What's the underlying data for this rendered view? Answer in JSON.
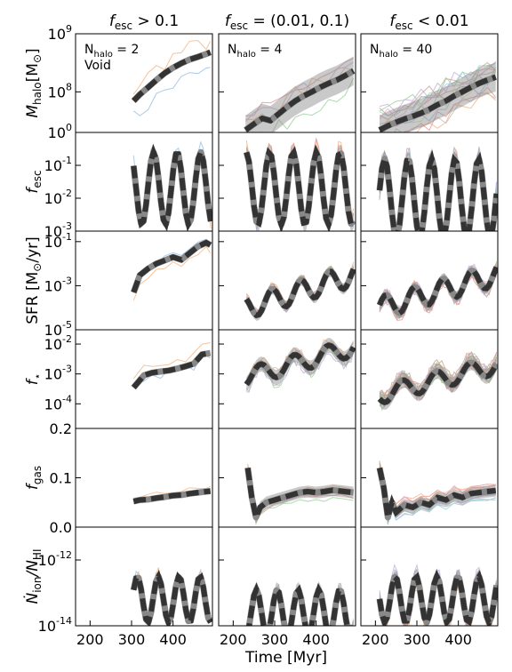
{
  "figure": {
    "column_titles": [
      "f_esc > 0.1",
      "f_esc = (0.01, 0.1)",
      "f_esc < 0.01"
    ],
    "xlabel": "Time [Myr]",
    "xticks": [
      200,
      300,
      400
    ],
    "xlim": [
      165,
      495
    ],
    "rows": [
      {
        "key": "mhalo",
        "ylabel": "M_halo [M_sun]",
        "scale": "log",
        "ylim": [
          20000000.0,
          1000000000.0
        ],
        "tick_labels": [
          {
            "v": 1000000000.0,
            "base": "10",
            "exp": "9"
          },
          {
            "v": 100000000.0,
            "base": "10",
            "exp": "8"
          }
        ]
      },
      {
        "key": "fesc",
        "ylabel": "f_esc",
        "scale": "log",
        "ylim": [
          0.001,
          1
        ],
        "tick_labels": [
          {
            "v": 1,
            "base": "10",
            "exp": "0"
          },
          {
            "v": 0.1,
            "base": "10",
            "exp": "-1"
          },
          {
            "v": 0.01,
            "base": "10",
            "exp": "-2"
          },
          {
            "v": 0.001,
            "base": "10",
            "exp": "-3"
          }
        ]
      },
      {
        "key": "sfr",
        "ylabel": "SFR [M_sun/yr]",
        "scale": "log",
        "ylim": [
          1e-05,
          0.3
        ],
        "tick_labels": [
          {
            "v": 0.1,
            "base": "10",
            "exp": "-1"
          },
          {
            "v": 0.001,
            "base": "10",
            "exp": "-3"
          },
          {
            "v": 1e-05,
            "base": "10",
            "exp": "-5"
          }
        ]
      },
      {
        "key": "fstar",
        "ylabel": "f_star",
        "scale": "log",
        "ylim": [
          1.5e-05,
          0.03
        ],
        "tick_labels": [
          {
            "v": 0.01,
            "base": "10",
            "exp": "-2"
          },
          {
            "v": 0.001,
            "base": "10",
            "exp": "-3"
          },
          {
            "v": 0.0001,
            "base": "10",
            "exp": "-4"
          }
        ]
      },
      {
        "key": "fgas",
        "ylabel": "f_gas",
        "scale": "linear",
        "ylim": [
          0,
          0.2
        ],
        "tick_labels": [
          {
            "v": 0.2,
            "text": "0.2"
          },
          {
            "v": 0.1,
            "text": "0.1"
          },
          {
            "v": 0.0,
            "text": "0.0"
          }
        ]
      },
      {
        "key": "nion",
        "ylabel": "N_ion / N_HI",
        "scale": "log",
        "ylim": [
          1e-14,
          1e-11
        ],
        "tick_labels": [
          {
            "v": 1e-12,
            "base": "10",
            "exp": "-12"
          },
          {
            "v": 1e-14,
            "base": "10",
            "exp": "-14"
          }
        ]
      }
    ],
    "annotations": [
      {
        "col": 0,
        "lines": [
          "N_halo = 2",
          "Void"
        ]
      },
      {
        "col": 1,
        "lines": [
          "N_halo = 4"
        ]
      },
      {
        "col": 2,
        "lines": [
          "N_halo = 40"
        ]
      }
    ]
  },
  "chart_data": [
    {
      "type": "line",
      "panel": "col1-mhalo",
      "series": [
        {
          "x": [
            305,
            320,
            340,
            360,
            380,
            400,
            420,
            440,
            460,
            480,
            490
          ],
          "y": [
            70000000.0,
            90000000.0,
            120000000.0,
            160000000.0,
            210000000.0,
            260000000.0,
            310000000.0,
            360000000.0,
            400000000.0,
            450000000.0,
            480000000.0
          ]
        }
      ]
    },
    {
      "type": "line",
      "panel": "col2-mhalo",
      "series": [
        {
          "x": [
            230,
            250,
            270,
            290,
            310,
            330,
            350,
            370,
            390,
            410,
            430,
            450,
            470,
            490
          ],
          "y": [
            22000000.0,
            28000000.0,
            35000000.0,
            32000000.0,
            42000000.0,
            55000000.0,
            70000000.0,
            85000000.0,
            100000000.0,
            120000000.0,
            140000000.0,
            160000000.0,
            190000000.0,
            230000000.0
          ]
        }
      ]
    },
    {
      "type": "line",
      "panel": "col3-mhalo",
      "series": [
        {
          "x": [
            210,
            230,
            250,
            270,
            290,
            310,
            330,
            350,
            370,
            390,
            410,
            430,
            450,
            470,
            490
          ],
          "y": [
            22000000.0,
            26000000.0,
            30000000.0,
            34000000.0,
            38000000.0,
            43000000.0,
            50000000.0,
            60000000.0,
            70000000.0,
            85000000.0,
            100000000.0,
            120000000.0,
            140000000.0,
            160000000.0,
            180000000.0
          ]
        }
      ]
    },
    {
      "type": "line",
      "panel": "col1-sfr",
      "series": [
        {
          "x": [
            305,
            320,
            340,
            360,
            380,
            400,
            420,
            440,
            460,
            480,
            490
          ],
          "y": [
            0.0005,
            0.003,
            0.006,
            0.01,
            0.014,
            0.02,
            0.015,
            0.03,
            0.06,
            0.09,
            0.07
          ]
        }
      ]
    },
    {
      "type": "line",
      "panel": "col1-fstar",
      "series": [
        {
          "x": [
            305,
            330,
            350,
            370,
            390,
            410,
            430,
            450,
            470,
            490
          ],
          "y": [
            0.00035,
            0.0009,
            0.0011,
            0.0012,
            0.0013,
            0.0015,
            0.0018,
            0.0022,
            0.0045,
            0.005
          ]
        }
      ]
    },
    {
      "type": "line",
      "panel": "col1-fgas",
      "series": [
        {
          "x": [
            305,
            320,
            340,
            360,
            380,
            400,
            420,
            440,
            460,
            480,
            490
          ],
          "y": [
            0.052,
            0.055,
            0.056,
            0.059,
            0.061,
            0.064,
            0.065,
            0.068,
            0.07,
            0.072,
            0.073
          ]
        }
      ]
    },
    {
      "type": "line",
      "panel": "col2-fgas",
      "series": [
        {
          "x": [
            235,
            245,
            255,
            265,
            280,
            300,
            320,
            340,
            360,
            380,
            400,
            420,
            440,
            460,
            490
          ],
          "y": [
            0.12,
            0.06,
            0.02,
            0.04,
            0.05,
            0.055,
            0.06,
            0.065,
            0.07,
            0.072,
            0.07,
            0.072,
            0.075,
            0.073,
            0.07
          ]
        }
      ]
    },
    {
      "type": "line",
      "panel": "col3-fgas",
      "series": [
        {
          "x": [
            210,
            220,
            230,
            240,
            250,
            270,
            290,
            310,
            330,
            350,
            370,
            390,
            410,
            430,
            450,
            470,
            490
          ],
          "y": [
            0.12,
            0.08,
            0.02,
            0.05,
            0.03,
            0.045,
            0.04,
            0.05,
            0.045,
            0.06,
            0.055,
            0.065,
            0.06,
            0.068,
            0.07,
            0.072,
            0.074
          ]
        }
      ]
    }
  ]
}
